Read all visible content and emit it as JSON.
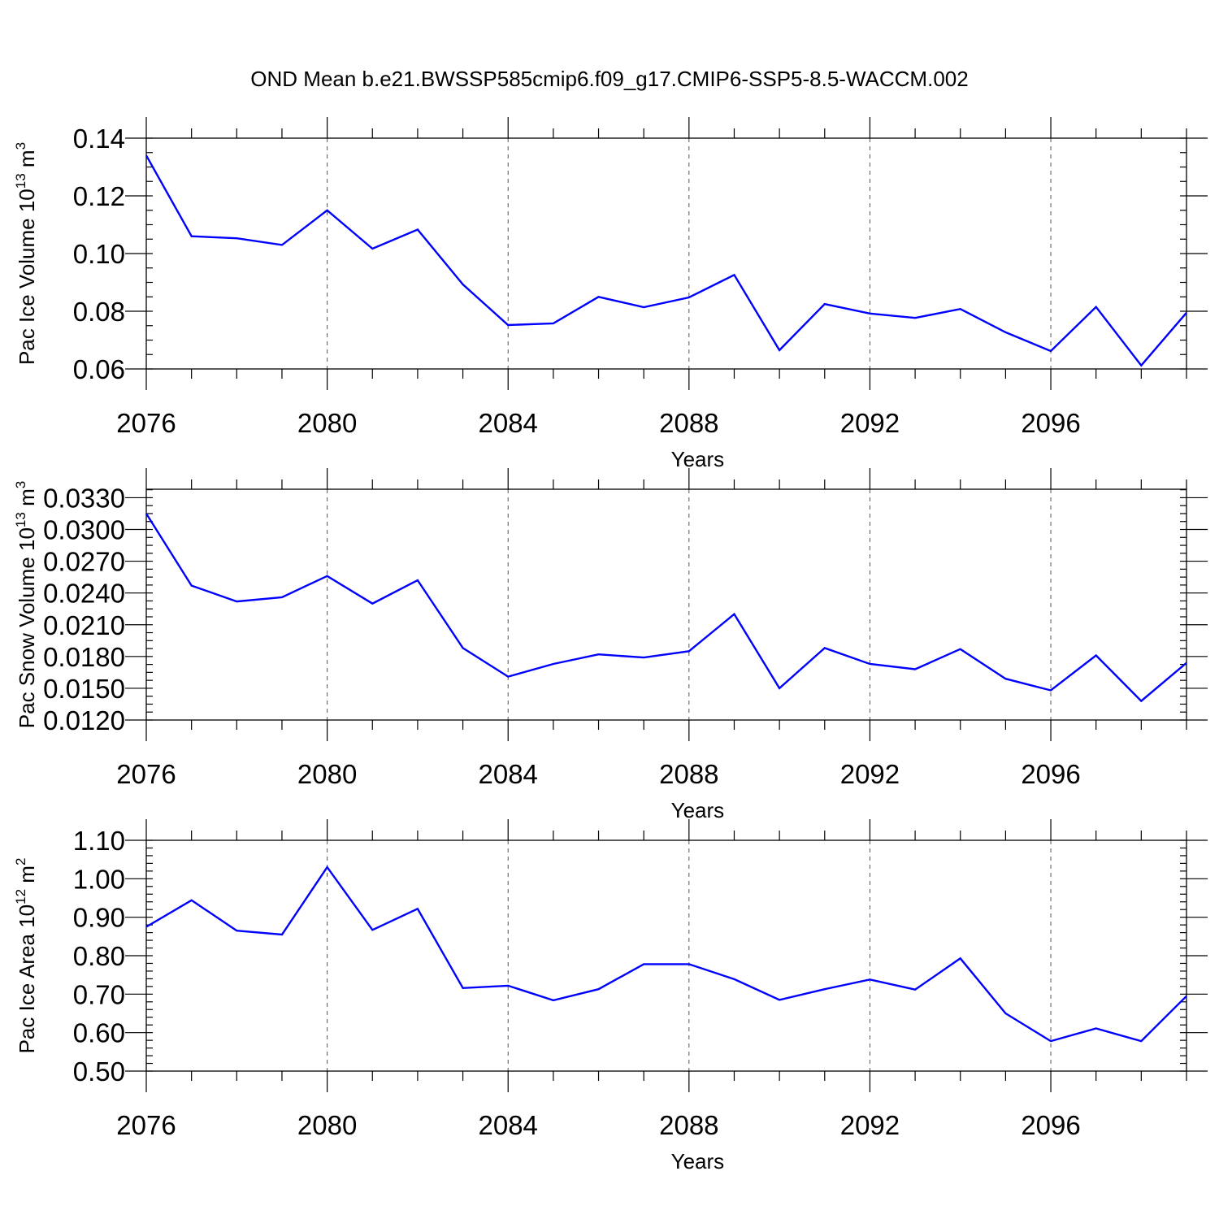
{
  "figure_title": "OND Mean b.e21.BWSSP585cmip6.f09_g17.CMIP6-SSP5-8.5-WACCM.002",
  "series_color": "#0000ff",
  "chart_data": [
    {
      "type": "line",
      "id": "ice-volume",
      "ylabel_prefix": "Pac Ice Volume 10",
      "ylabel_exp": "13",
      "ylabel_unit": " m",
      "ylabel_unit_exp": "3",
      "xlabel": "Years",
      "xlim": [
        2076,
        2099
      ],
      "ylim": [
        0.06,
        0.14
      ],
      "y_ticks": [
        "0.06",
        "0.08",
        "0.10",
        "0.12",
        "0.14"
      ],
      "y_tick_values": [
        0.06,
        0.08,
        0.1,
        0.12,
        0.14
      ],
      "y_minor_step": 0.005,
      "x_ticks": [
        "2076",
        "2080",
        "2084",
        "2088",
        "2092",
        "2096"
      ],
      "x_tick_values": [
        2076,
        2080,
        2084,
        2088,
        2092,
        2096
      ],
      "grid_x": [
        2080,
        2084,
        2088,
        2092,
        2096
      ],
      "x": [
        2076,
        2077,
        2078,
        2079,
        2080,
        2081,
        2082,
        2083,
        2084,
        2085,
        2086,
        2087,
        2088,
        2089,
        2090,
        2091,
        2092,
        2093,
        2094,
        2095,
        2096,
        2097,
        2098,
        2099
      ],
      "values": [
        0.134,
        0.106,
        0.1053,
        0.103,
        0.115,
        0.1017,
        0.1083,
        0.0893,
        0.0752,
        0.0758,
        0.085,
        0.0814,
        0.0848,
        0.0926,
        0.0665,
        0.0825,
        0.0792,
        0.0777,
        0.0808,
        0.0727,
        0.0662,
        0.0815,
        0.0612,
        0.0795
      ]
    },
    {
      "type": "line",
      "id": "snow-volume",
      "ylabel_prefix": "Pac Snow Volume 10",
      "ylabel_exp": "13",
      "ylabel_unit": " m",
      "ylabel_unit_exp": "3",
      "xlabel": "Years",
      "xlim": [
        2076,
        2099
      ],
      "ylim": [
        0.012,
        0.0338
      ],
      "y_ticks": [
        "0.0120",
        "0.0150",
        "0.0180",
        "0.0210",
        "0.0240",
        "0.0270",
        "0.0300",
        "0.0330"
      ],
      "y_tick_values": [
        0.012,
        0.015,
        0.018,
        0.021,
        0.024,
        0.027,
        0.03,
        0.033
      ],
      "y_minor_step": 0.00075,
      "x_ticks": [
        "2076",
        "2080",
        "2084",
        "2088",
        "2092",
        "2096"
      ],
      "x_tick_values": [
        2076,
        2080,
        2084,
        2088,
        2092,
        2096
      ],
      "grid_x": [
        2080,
        2084,
        2088,
        2092,
        2096
      ],
      "x": [
        2076,
        2077,
        2078,
        2079,
        2080,
        2081,
        2082,
        2083,
        2084,
        2085,
        2086,
        2087,
        2088,
        2089,
        2090,
        2091,
        2092,
        2093,
        2094,
        2095,
        2096,
        2097,
        2098,
        2099
      ],
      "values": [
        0.0315,
        0.0247,
        0.0232,
        0.0236,
        0.0256,
        0.023,
        0.0252,
        0.0188,
        0.0161,
        0.0173,
        0.0182,
        0.0179,
        0.0185,
        0.022,
        0.015,
        0.0188,
        0.0173,
        0.0168,
        0.0187,
        0.0159,
        0.0148,
        0.0181,
        0.0138,
        0.0174
      ]
    },
    {
      "type": "line",
      "id": "ice-area",
      "ylabel_prefix": "Pac Ice Area 10",
      "ylabel_exp": "12",
      "ylabel_unit": " m",
      "ylabel_unit_exp": "2",
      "xlabel": "Years",
      "xlim": [
        2076,
        2099
      ],
      "ylim": [
        0.5,
        1.1
      ],
      "y_ticks": [
        "0.50",
        "0.60",
        "0.70",
        "0.80",
        "0.90",
        "1.00",
        "1.10"
      ],
      "y_tick_values": [
        0.5,
        0.6,
        0.7,
        0.8,
        0.9,
        1.0,
        1.1
      ],
      "y_minor_step": 0.02,
      "x_ticks": [
        "2076",
        "2080",
        "2084",
        "2088",
        "2092",
        "2096"
      ],
      "x_tick_values": [
        2076,
        2080,
        2084,
        2088,
        2092,
        2096
      ],
      "grid_x": [
        2080,
        2084,
        2088,
        2092,
        2096
      ],
      "x": [
        2076,
        2077,
        2078,
        2079,
        2080,
        2081,
        2082,
        2083,
        2084,
        2085,
        2086,
        2087,
        2088,
        2089,
        2090,
        2091,
        2092,
        2093,
        2094,
        2095,
        2096,
        2097,
        2098,
        2099
      ],
      "values": [
        0.875,
        0.944,
        0.865,
        0.855,
        1.03,
        0.867,
        0.922,
        0.716,
        0.722,
        0.684,
        0.713,
        0.778,
        0.778,
        0.739,
        0.685,
        0.713,
        0.738,
        0.712,
        0.793,
        0.65,
        0.578,
        0.611,
        0.578,
        0.695
      ]
    }
  ]
}
